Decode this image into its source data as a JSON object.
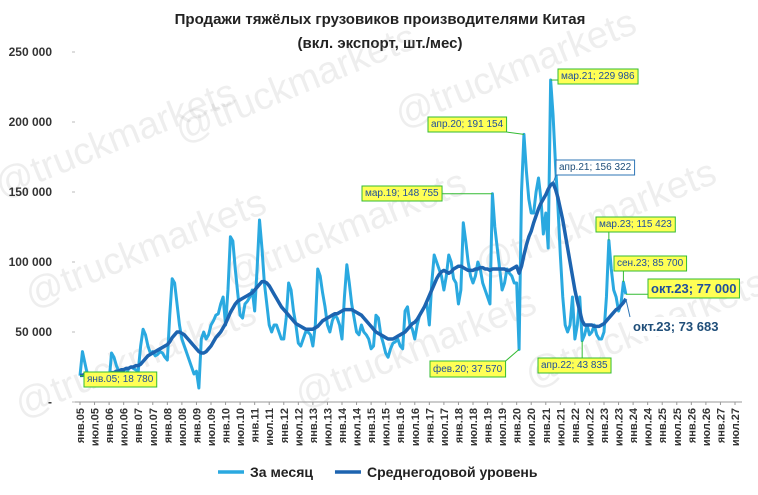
{
  "chart_data": {
    "type": "line",
    "title": "Продажи тяжёлых грузовиков производителями Китая",
    "subtitle": "(вкл. экспорт, шт./мес)",
    "watermark": "@truckmarkets",
    "categories": [
      "янв.05",
      null,
      null,
      null,
      null,
      null,
      "июл.05",
      null,
      null,
      null,
      null,
      null,
      "янв.06",
      null,
      null,
      null,
      null,
      null,
      "июл.06",
      null,
      null,
      null,
      null,
      null,
      "янв.07",
      null,
      null,
      null,
      null,
      null,
      "июл.07",
      null,
      null,
      null,
      null,
      null,
      "янв.08",
      null,
      null,
      null,
      null,
      null,
      "июл.08",
      null,
      null,
      null,
      null,
      null,
      "янв.09",
      null,
      null,
      null,
      null,
      null,
      "июл.09",
      null,
      null,
      null,
      null,
      null,
      "янв.10",
      null,
      null,
      null,
      null,
      null,
      "июл.10",
      null,
      null,
      null,
      null,
      null,
      "янв.11",
      null,
      null,
      null,
      null,
      null,
      "июл.11",
      null,
      null,
      null,
      null,
      null,
      "янв.12",
      null,
      null,
      null,
      null,
      null,
      "июл.12",
      null,
      null,
      null,
      null,
      null,
      "янв.13",
      null,
      null,
      null,
      null,
      null,
      "июл.13",
      null,
      null,
      null,
      null,
      null,
      "янв.14",
      null,
      null,
      null,
      null,
      null,
      "июл.14",
      null,
      null,
      null,
      null,
      null,
      "янв.15",
      null,
      null,
      null,
      null,
      null,
      "июл.15",
      null,
      null,
      null,
      null,
      null,
      "янв.16",
      null,
      null,
      null,
      null,
      null,
      "июл.16",
      null,
      null,
      null,
      null,
      null,
      "янв.17",
      null,
      null,
      null,
      null,
      null,
      "июл.17",
      null,
      null,
      null,
      null,
      null,
      "янв.18",
      null,
      null,
      null,
      null,
      null,
      "июл.18",
      null,
      null,
      null,
      null,
      null,
      "янв.19",
      null,
      null,
      null,
      null,
      null,
      "июл.19",
      null,
      null,
      null,
      null,
      null,
      "янв.20",
      null,
      null,
      null,
      null,
      null,
      "июл.20",
      null,
      null,
      null,
      null,
      null,
      "янв.21",
      null,
      null,
      null,
      null,
      null,
      "июл.21",
      null,
      null,
      null,
      null,
      null,
      "янв.22",
      null,
      null,
      null,
      null,
      null,
      "июл.22",
      null,
      null,
      null,
      null,
      null,
      "янв.23",
      null,
      null,
      null,
      null,
      null,
      "июл.23",
      null,
      null,
      null,
      null,
      null,
      "янв.24",
      null,
      null,
      null,
      null,
      null,
      "июл.24",
      null,
      null,
      null,
      null,
      null,
      "янв.25",
      null,
      null,
      null,
      null,
      null,
      "июл.25",
      null,
      null,
      null,
      null,
      null,
      "янв.26",
      null,
      null,
      null,
      null,
      null,
      "июл.26",
      null,
      null,
      null,
      null,
      null,
      "янв.27",
      null,
      null,
      null,
      null,
      null,
      "июл.27"
    ],
    "series": [
      {
        "name": "За месяц",
        "color": "#2aa9e0",
        "width": 3,
        "values": [
          18780,
          36000,
          28000,
          20000,
          15000,
          13000,
          14000,
          12000,
          15000,
          18000,
          17000,
          15000,
          15000,
          35000,
          32000,
          26000,
          22000,
          20000,
          22000,
          19000,
          24000,
          25000,
          24000,
          23000,
          22000,
          40000,
          52000,
          48000,
          40000,
          35000,
          36000,
          33000,
          34000,
          36000,
          35000,
          32000,
          30000,
          62000,
          88000,
          85000,
          70000,
          55000,
          45000,
          40000,
          35000,
          30000,
          25000,
          20000,
          22000,
          10000,
          45000,
          50000,
          45000,
          48000,
          55000,
          58000,
          62000,
          63000,
          70000,
          75000,
          55000,
          80000,
          118000,
          115000,
          95000,
          78000,
          62000,
          60000,
          70000,
          72000,
          75000,
          80000,
          65000,
          95000,
          130000,
          110000,
          85000,
          70000,
          55000,
          50000,
          55000,
          55000,
          50000,
          45000,
          45000,
          60000,
          85000,
          80000,
          65000,
          55000,
          42000,
          40000,
          45000,
          50000,
          50000,
          48000,
          40000,
          55000,
          95000,
          90000,
          78000,
          68000,
          55000,
          50000,
          58000,
          62000,
          60000,
          55000,
          45000,
          75000,
          98000,
          85000,
          70000,
          60000,
          50000,
          48000,
          55000,
          50000,
          48000,
          45000,
          38000,
          40000,
          62000,
          60000,
          48000,
          42000,
          35000,
          32000,
          38000,
          42000,
          43000,
          45000,
          40000,
          38000,
          65000,
          68000,
          55000,
          52000,
          45000,
          55000,
          62000,
          65000,
          68000,
          70000,
          55000,
          85000,
          105000,
          100000,
          95000,
          90000,
          80000,
          90000,
          105000,
          100000,
          88000,
          85000,
          70000,
          80000,
          128000,
          115000,
          100000,
          90000,
          85000,
          90000,
          100000,
          95000,
          85000,
          80000,
          75000,
          70000,
          148755,
          125000,
          110000,
          95000,
          80000,
          85000,
          95000,
          92000,
          90000,
          85000,
          85000,
          37570,
          150000,
          191154,
          165000,
          145000,
          135000,
          135000,
          150000,
          160000,
          145000,
          120000,
          135000,
          110000,
          229986,
          205000,
          170000,
          140000,
          105000,
          75000,
          55000,
          50000,
          55000,
          75000,
          45000,
          55000,
          75000,
          43835,
          48000,
          55000,
          48000,
          50000,
          55000,
          48000,
          45000,
          45000,
          50000,
          75000,
          115423,
          95000,
          80000,
          75000,
          65000,
          70000,
          85700,
          77000,
          null,
          null,
          null,
          null,
          null,
          null,
          null,
          null,
          null,
          null,
          null,
          null,
          null,
          null,
          null,
          null,
          null,
          null,
          null,
          null,
          null,
          null,
          null,
          null,
          null,
          null,
          null,
          null,
          null,
          null,
          null,
          null,
          null,
          null,
          null,
          null,
          null,
          null,
          null,
          null,
          null,
          null,
          null,
          null,
          null
        ]
      },
      {
        "name": "Среднегодовой уровень",
        "color": "#1d64b0",
        "width": 3.5,
        "values": [
          19000,
          19000,
          20000,
          20000,
          20000,
          19000,
          19000,
          19000,
          19000,
          20000,
          20000,
          20000,
          20000,
          21000,
          21000,
          22000,
          22000,
          23000,
          23000,
          24000,
          24000,
          25000,
          25000,
          26000,
          26000,
          27000,
          29000,
          31000,
          33000,
          34000,
          35000,
          36000,
          37000,
          38000,
          39000,
          40000,
          41000,
          43000,
          46000,
          48000,
          50000,
          50000,
          49000,
          48000,
          46000,
          44000,
          42000,
          40000,
          38000,
          36000,
          35000,
          35000,
          36000,
          38000,
          40000,
          43000,
          46000,
          48000,
          50000,
          53000,
          56000,
          60000,
          64000,
          67000,
          70000,
          72000,
          73000,
          74000,
          75000,
          76000,
          77000,
          78000,
          80000,
          82000,
          84000,
          86000,
          86000,
          85000,
          83000,
          80000,
          77000,
          74000,
          71000,
          68000,
          66000,
          64000,
          62000,
          60000,
          58000,
          56000,
          55000,
          54000,
          53000,
          52000,
          52000,
          52000,
          52000,
          53000,
          54000,
          56000,
          58000,
          59000,
          60000,
          61000,
          62000,
          63000,
          63000,
          64000,
          65000,
          66000,
          66000,
          66000,
          66000,
          65000,
          64000,
          63000,
          62000,
          60000,
          58000,
          56000,
          54000,
          52000,
          50000,
          49000,
          48000,
          47000,
          46000,
          45000,
          45000,
          45000,
          46000,
          47000,
          48000,
          49000,
          50000,
          52000,
          54000,
          56000,
          57000,
          59000,
          62000,
          65000,
          68000,
          72000,
          76000,
          80000,
          84000,
          88000,
          91000,
          93000,
          94000,
          93000,
          92000,
          93000,
          95000,
          96000,
          97000,
          97000,
          96000,
          95000,
          94000,
          94000,
          94000,
          95000,
          95000,
          96000,
          96000,
          95000,
          95000,
          94000,
          95000,
          95000,
          95000,
          95000,
          95000,
          95000,
          94000,
          94000,
          95000,
          96000,
          97000,
          92000,
          97000,
          105000,
          112000,
          118000,
          122000,
          128000,
          133000,
          138000,
          142000,
          145000,
          148000,
          152000,
          155000,
          156322,
          152000,
          146000,
          138000,
          130000,
          120000,
          110000,
          100000,
          90000,
          80000,
          72000,
          65000,
          58000,
          55000,
          55000,
          55000,
          55000,
          54000,
          54000,
          54000,
          55000,
          56000,
          58000,
          60000,
          62000,
          64000,
          66000,
          67000,
          69000,
          71000,
          73683,
          null,
          null,
          null,
          null,
          null,
          null,
          null,
          null,
          null,
          null,
          null,
          null,
          null,
          null,
          null,
          null,
          null,
          null,
          null,
          null,
          null,
          null,
          null,
          null,
          null,
          null,
          null,
          null,
          null,
          null,
          null,
          null,
          null,
          null,
          null,
          null,
          null,
          null,
          null,
          null,
          null,
          null,
          null,
          null,
          null
        ]
      }
    ],
    "ylim": [
      0,
      250000
    ],
    "yticks": [
      {
        "value": 0,
        "label": "-"
      },
      {
        "value": 50000,
        "label": "50 000"
      },
      {
        "value": 100000,
        "label": "100 000"
      },
      {
        "value": 150000,
        "label": "150 000"
      },
      {
        "value": 200000,
        "label": "200 000"
      },
      {
        "value": 250000,
        "label": "250 000"
      }
    ],
    "grid": false,
    "legend": "bottom",
    "annotations": [
      {
        "text": "янв.05;  18 780"
      },
      {
        "text": "мар.19; 148 755"
      },
      {
        "text": "апр.20;  191 154"
      },
      {
        "text": "мар.21;  229 986"
      },
      {
        "text": "апр.21;  156 322"
      },
      {
        "text": "фев.20; 37 570"
      },
      {
        "text": "апр.22;  43 835"
      },
      {
        "text": "мар.23; 115 423"
      },
      {
        "text": "сен.23;  85 700"
      },
      {
        "text": "окт.23;  77 000"
      },
      {
        "text": "окт.23;  73 683"
      }
    ]
  }
}
